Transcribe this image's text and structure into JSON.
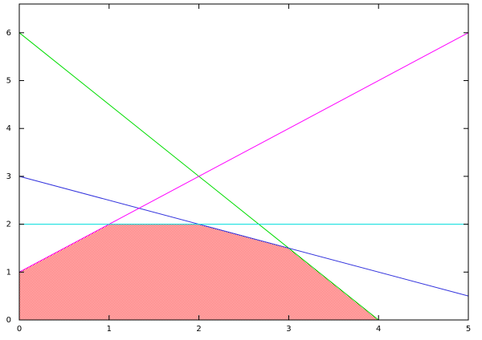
{
  "chart_data": {
    "type": "line",
    "series": [
      {
        "color": "#00dd00",
        "x": [
          0,
          4
        ],
        "values": [
          6,
          0
        ]
      },
      {
        "color": "#3333dd",
        "x": [
          0,
          5
        ],
        "values": [
          3,
          0.5
        ]
      },
      {
        "color": "#ff00ff",
        "x": [
          0,
          5
        ],
        "values": [
          1,
          6
        ]
      },
      {
        "color": "#00dddd",
        "x": [
          0,
          5
        ],
        "values": [
          2,
          2
        ]
      }
    ],
    "region": {
      "color": "#ff3333",
      "x": [
        0,
        0,
        1,
        2,
        3,
        4
      ],
      "values": [
        0,
        1,
        2,
        2,
        1.5,
        0
      ]
    },
    "xlim": [
      0,
      5
    ],
    "ylim": [
      0,
      6.6
    ],
    "xticks": [
      0,
      1,
      2,
      3,
      4,
      5
    ],
    "yticks": [
      0,
      1,
      2,
      3,
      4,
      5,
      6
    ]
  }
}
